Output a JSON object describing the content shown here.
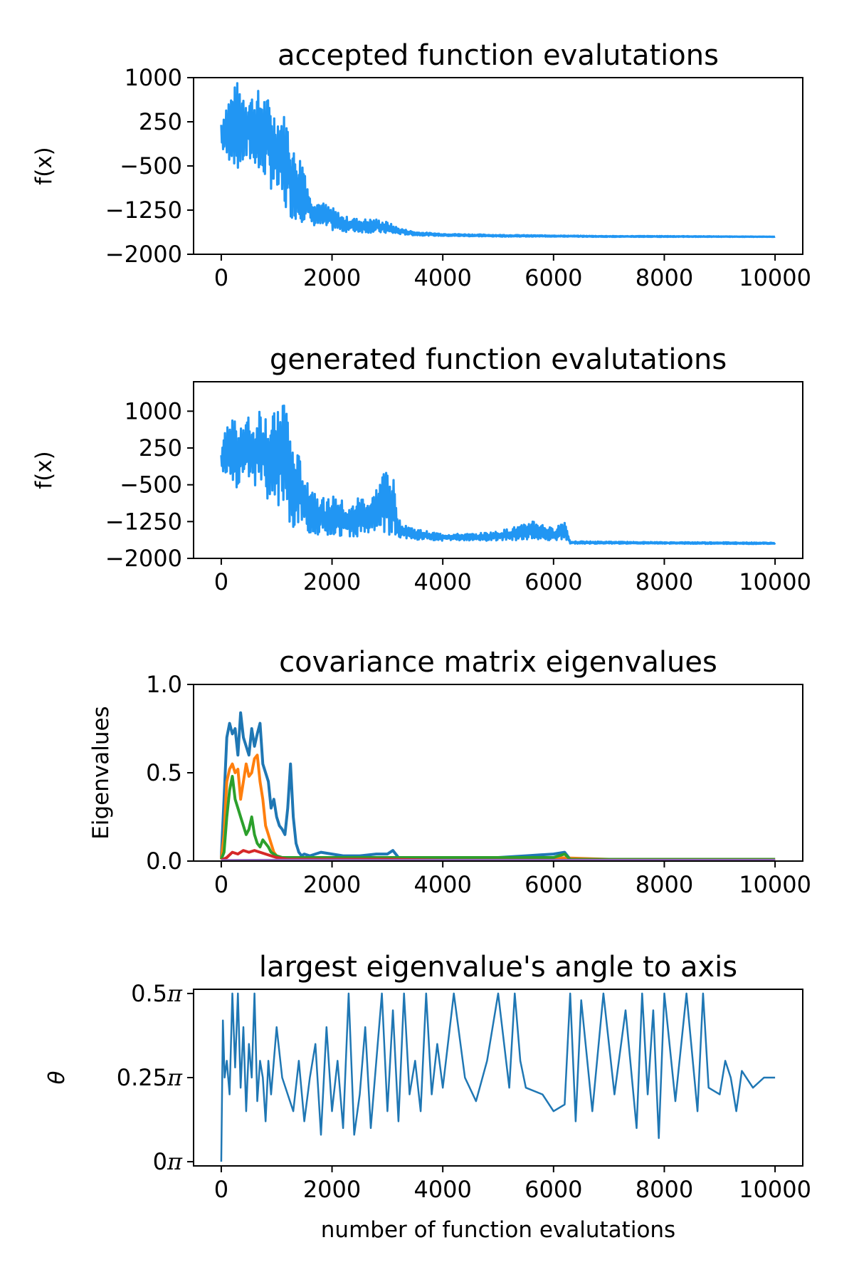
{
  "chart_data": [
    {
      "type": "line",
      "title": "accepted function evalutations",
      "xlabel": "",
      "ylabel": "f(x)",
      "xlim": [
        -500,
        10500
      ],
      "ylim": [
        -2000,
        1000
      ],
      "xticks": [
        0,
        2000,
        4000,
        6000,
        8000,
        10000
      ],
      "xtick_labels": [
        "0",
        "2000",
        "4000",
        "6000",
        "8000",
        "10000"
      ],
      "yticks": [
        1000,
        250,
        -500,
        -1250,
        -2000
      ],
      "ytick_labels": [
        "1000",
        "250",
        "−500",
        "−1250",
        "−2000"
      ],
      "grid": false,
      "series": [
        {
          "color": "#2196f3",
          "x": [
            0,
            100,
            200,
            300,
            400,
            500,
            600,
            700,
            800,
            900,
            1000,
            1100,
            1200,
            1300,
            1400,
            1500,
            1600,
            1800,
            2000,
            2200,
            2500,
            2800,
            3000,
            3200,
            3500,
            4000,
            5000,
            6000,
            7000,
            8000,
            9000,
            10000
          ],
          "y_high": [
            300,
            650,
            800,
            950,
            850,
            800,
            700,
            850,
            700,
            600,
            400,
            450,
            300,
            -200,
            -300,
            -400,
            -1000,
            -1100,
            -1200,
            -1350,
            -1400,
            -1400,
            -1450,
            -1550,
            -1620,
            -1650,
            -1670,
            -1680,
            -1690,
            -1690,
            -1695,
            -1700
          ],
          "y_low": [
            -200,
            -450,
            -400,
            -650,
            -500,
            -500,
            -450,
            -800,
            -700,
            -900,
            -1000,
            -1200,
            -1350,
            -1400,
            -1450,
            -1450,
            -1500,
            -1550,
            -1600,
            -1620,
            -1630,
            -1640,
            -1650,
            -1660,
            -1680,
            -1690,
            -1700,
            -1700,
            -1705,
            -1705,
            -1705,
            -1705
          ]
        }
      ]
    },
    {
      "type": "line",
      "title": "generated function evalutations",
      "xlabel": "",
      "ylabel": "f(x)",
      "xlim": [
        -500,
        10500
      ],
      "ylim": [
        -2000,
        1600
      ],
      "xticks": [
        0,
        2000,
        4000,
        6000,
        8000,
        10000
      ],
      "xtick_labels": [
        "0",
        "2000",
        "4000",
        "6000",
        "8000",
        "10000"
      ],
      "yticks": [
        1000,
        250,
        -500,
        -1250,
        -2000
      ],
      "ytick_labels": [
        "1000",
        "250",
        "−500",
        "−1250",
        "−2000"
      ],
      "grid": false,
      "series": [
        {
          "color": "#2196f3",
          "x": [
            0,
            100,
            200,
            300,
            400,
            500,
            600,
            700,
            800,
            900,
            1000,
            1100,
            1200,
            1300,
            1400,
            1500,
            1700,
            1900,
            2100,
            2300,
            2500,
            2700,
            2900,
            3000,
            3100,
            3200,
            3500,
            4000,
            4500,
            5000,
            5500,
            5600,
            6000,
            6200,
            6300,
            7000,
            8000,
            9000,
            10000
          ],
          "y_high": [
            300,
            700,
            900,
            950,
            850,
            900,
            700,
            1200,
            1000,
            800,
            1100,
            1500,
            1100,
            200,
            100,
            -200,
            -600,
            -800,
            -700,
            -1000,
            -700,
            -800,
            -300,
            0,
            -300,
            -1200,
            -1400,
            -1500,
            -1500,
            -1450,
            -1300,
            -1200,
            -1400,
            -1200,
            -1650,
            -1660,
            -1670,
            -1670,
            -1680
          ],
          "y_low": [
            -200,
            -300,
            -400,
            -600,
            -500,
            -400,
            -500,
            -700,
            -800,
            -900,
            -1000,
            -1100,
            -1300,
            -1400,
            -1450,
            -1450,
            -1500,
            -1550,
            -1550,
            -1550,
            -1550,
            -1550,
            -1500,
            -1550,
            -1550,
            -1600,
            -1620,
            -1640,
            -1640,
            -1640,
            -1630,
            -1620,
            -1630,
            -1620,
            -1700,
            -1700,
            -1700,
            -1705,
            -1705
          ]
        }
      ]
    },
    {
      "type": "line",
      "title": "covariance matrix eigenvalues",
      "xlabel": "",
      "ylabel": "Eigenvalues",
      "xlim": [
        -500,
        10500
      ],
      "ylim": [
        0.0,
        1.0
      ],
      "xticks": [
        0,
        2000,
        4000,
        6000,
        8000,
        10000
      ],
      "xtick_labels": [
        "0",
        "2000",
        "4000",
        "6000",
        "8000",
        "10000"
      ],
      "yticks": [
        0.0,
        0.5,
        1.0
      ],
      "ytick_labels": [
        "0.0",
        "0.5",
        "1.0"
      ],
      "grid": false,
      "series": [
        {
          "color": "#1f77b4",
          "x": [
            0,
            50,
            100,
            150,
            200,
            250,
            300,
            350,
            400,
            450,
            500,
            550,
            600,
            650,
            700,
            750,
            800,
            850,
            900,
            950,
            1000,
            1050,
            1100,
            1150,
            1200,
            1250,
            1300,
            1350,
            1400,
            1450,
            1500,
            1600,
            1800,
            2000,
            2200,
            2500,
            2800,
            3000,
            3100,
            3200,
            3500,
            4000,
            4500,
            5000,
            5500,
            6000,
            6200,
            6300,
            7000,
            8000,
            9000,
            10000
          ],
          "y": [
            0.02,
            0.35,
            0.7,
            0.78,
            0.72,
            0.75,
            0.6,
            0.84,
            0.7,
            0.65,
            0.6,
            0.75,
            0.65,
            0.72,
            0.78,
            0.55,
            0.5,
            0.45,
            0.3,
            0.35,
            0.25,
            0.2,
            0.18,
            0.15,
            0.3,
            0.55,
            0.25,
            0.1,
            0.05,
            0.03,
            0.04,
            0.03,
            0.05,
            0.04,
            0.03,
            0.03,
            0.04,
            0.04,
            0.06,
            0.02,
            0.02,
            0.02,
            0.02,
            0.02,
            0.03,
            0.04,
            0.05,
            0.01,
            0.01,
            0.01,
            0.01,
            0.01
          ]
        },
        {
          "color": "#ff7f0e",
          "x": [
            0,
            50,
            100,
            150,
            200,
            250,
            300,
            350,
            400,
            450,
            500,
            550,
            600,
            650,
            700,
            750,
            800,
            850,
            900,
            950,
            1000,
            1100,
            1300,
            1500,
            2000,
            3000,
            4000,
            5000,
            6000,
            7000,
            8000,
            9000,
            10000
          ],
          "y": [
            0.01,
            0.15,
            0.45,
            0.52,
            0.55,
            0.5,
            0.52,
            0.35,
            0.45,
            0.55,
            0.48,
            0.5,
            0.58,
            0.6,
            0.45,
            0.35,
            0.2,
            0.15,
            0.1,
            0.05,
            0.03,
            0.02,
            0.02,
            0.02,
            0.02,
            0.02,
            0.02,
            0.02,
            0.02,
            0.01,
            0.01,
            0.01,
            0.01
          ]
        },
        {
          "color": "#2ca02c",
          "x": [
            0,
            50,
            100,
            150,
            200,
            250,
            300,
            350,
            400,
            450,
            500,
            550,
            600,
            650,
            700,
            750,
            800,
            850,
            900,
            950,
            1000,
            1100,
            1500,
            2000,
            3000,
            4000,
            5000,
            6000,
            6200,
            6300,
            7000,
            8000,
            9000,
            10000
          ],
          "y": [
            0.01,
            0.05,
            0.25,
            0.4,
            0.48,
            0.35,
            0.3,
            0.25,
            0.2,
            0.15,
            0.18,
            0.25,
            0.15,
            0.1,
            0.08,
            0.12,
            0.1,
            0.08,
            0.05,
            0.04,
            0.03,
            0.02,
            0.02,
            0.02,
            0.02,
            0.02,
            0.02,
            0.02,
            0.04,
            0.01,
            0.01,
            0.01,
            0.01,
            0.01
          ]
        },
        {
          "color": "#d62728",
          "x": [
            0,
            100,
            200,
            300,
            400,
            500,
            600,
            700,
            800,
            900,
            1000,
            1200,
            1500,
            2000,
            3000,
            4000,
            6000,
            8000,
            10000
          ],
          "y": [
            0.005,
            0.02,
            0.05,
            0.04,
            0.06,
            0.05,
            0.06,
            0.05,
            0.04,
            0.03,
            0.02,
            0.01,
            0.01,
            0.01,
            0.01,
            0.005,
            0.005,
            0.005,
            0.005
          ]
        },
        {
          "color": "#9467bd",
          "x": [
            0,
            1000,
            2000,
            4000,
            6000,
            8000,
            10000
          ],
          "y": [
            0.003,
            0.005,
            0.005,
            0.004,
            0.004,
            0.004,
            0.004
          ]
        }
      ]
    },
    {
      "type": "line",
      "title": "largest eigenvalue's angle to axis",
      "xlabel": "number of function evalutations",
      "ylabel": "θ",
      "xlim": [
        -500,
        10500
      ],
      "ylim": [
        -0.0125,
        0.5125
      ],
      "xticks": [
        0,
        2000,
        4000,
        6000,
        8000,
        10000
      ],
      "xtick_labels": [
        "0",
        "2000",
        "4000",
        "6000",
        "8000",
        "10000"
      ],
      "yticks": [
        0.0,
        0.25,
        0.5
      ],
      "ytick_labels": [
        "0π",
        "0.25π",
        "0.5π"
      ],
      "ylabel_unit": "π",
      "grid": false,
      "series": [
        {
          "color": "#1f77b4",
          "x": [
            0,
            30,
            60,
            100,
            150,
            200,
            250,
            300,
            350,
            400,
            450,
            500,
            550,
            600,
            650,
            700,
            750,
            800,
            850,
            900,
            1000,
            1100,
            1200,
            1300,
            1400,
            1500,
            1600,
            1700,
            1800,
            1900,
            2000,
            2100,
            2200,
            2300,
            2400,
            2500,
            2600,
            2700,
            2800,
            2900,
            3000,
            3100,
            3200,
            3300,
            3400,
            3500,
            3600,
            3700,
            3800,
            3900,
            4000,
            4200,
            4400,
            4600,
            4800,
            5000,
            5200,
            5300,
            5400,
            5500,
            5800,
            6000,
            6200,
            6300,
            6400,
            6500,
            6700,
            6900,
            7100,
            7300,
            7500,
            7600,
            7700,
            7800,
            7900,
            8000,
            8200,
            8400,
            8600,
            8700,
            8800,
            9000,
            9100,
            9200,
            9300,
            9400,
            9600,
            9800,
            10000
          ],
          "y": [
            0.0,
            0.42,
            0.25,
            0.3,
            0.2,
            0.5,
            0.28,
            0.5,
            0.22,
            0.4,
            0.15,
            0.35,
            0.25,
            0.5,
            0.18,
            0.3,
            0.25,
            0.12,
            0.3,
            0.2,
            0.4,
            0.25,
            0.2,
            0.15,
            0.3,
            0.12,
            0.25,
            0.35,
            0.08,
            0.4,
            0.15,
            0.3,
            0.1,
            0.5,
            0.08,
            0.2,
            0.4,
            0.1,
            0.3,
            0.5,
            0.15,
            0.45,
            0.12,
            0.5,
            0.2,
            0.3,
            0.15,
            0.5,
            0.2,
            0.35,
            0.22,
            0.5,
            0.25,
            0.18,
            0.3,
            0.5,
            0.22,
            0.5,
            0.3,
            0.22,
            0.2,
            0.15,
            0.17,
            0.5,
            0.12,
            0.48,
            0.15,
            0.5,
            0.2,
            0.45,
            0.1,
            0.5,
            0.2,
            0.45,
            0.07,
            0.5,
            0.18,
            0.5,
            0.15,
            0.5,
            0.22,
            0.2,
            0.3,
            0.25,
            0.15,
            0.27,
            0.22,
            0.25,
            0.25
          ]
        }
      ]
    }
  ]
}
